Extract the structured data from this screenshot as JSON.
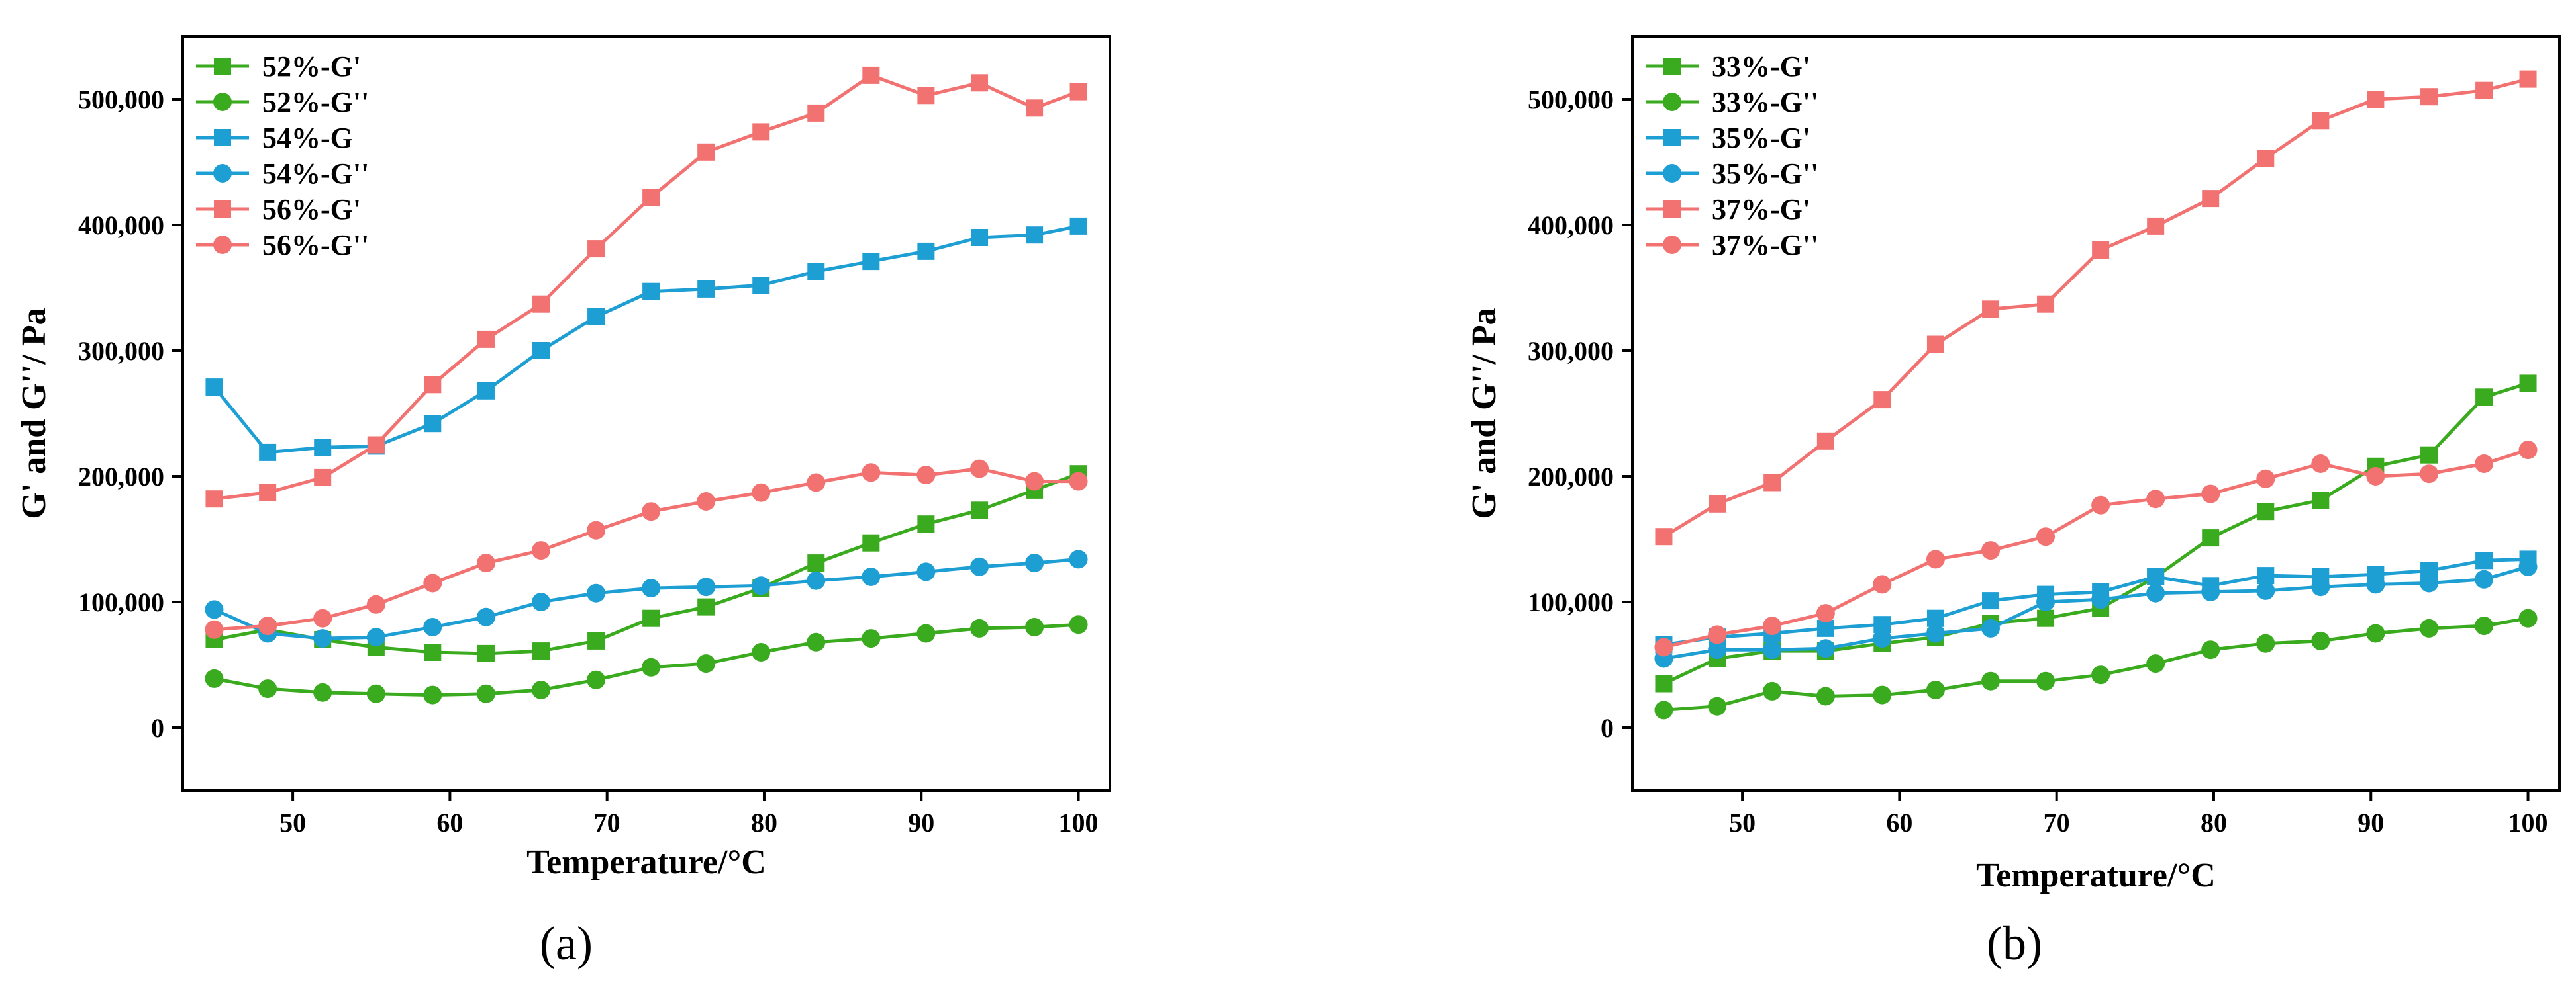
{
  "colors": {
    "green": "#3aaa1e",
    "blue": "#1e9fd4",
    "red": "#f27272",
    "axis": "#000000"
  },
  "chart_data": [
    {
      "type": "line",
      "panel_label": "(a)",
      "xlabel": "Temperature/°C",
      "ylabel": "G' and G''/ Pa",
      "xlim": [
        43,
        102
      ],
      "ylim": [
        -50000,
        550000
      ],
      "xticks": [
        50,
        60,
        70,
        80,
        90,
        100
      ],
      "yticks": [
        0,
        100000,
        200000,
        300000,
        400000,
        500000
      ],
      "ytick_labels": [
        "0",
        "100,000",
        "200,000",
        "300,000",
        "400,000",
        "500,000"
      ],
      "legend_position": "top-left",
      "x": [
        45,
        48.4,
        51.9,
        55.3,
        58.9,
        62.3,
        65.8,
        69.3,
        72.8,
        76.3,
        79.8,
        83.3,
        86.8,
        90.3,
        93.7,
        97.2,
        100
      ],
      "series": [
        {
          "name": "52%-G'",
          "marker": "square",
          "color": "green",
          "values": [
            70000,
            78000,
            70000,
            64000,
            60000,
            59000,
            61000,
            69000,
            87000,
            96000,
            111000,
            131000,
            147000,
            162000,
            173000,
            189000,
            202000
          ]
        },
        {
          "name": "52%-G''",
          "marker": "circle",
          "color": "green",
          "values": [
            39000,
            31000,
            28000,
            27000,
            26000,
            27000,
            30000,
            38000,
            48000,
            51000,
            60000,
            68000,
            71000,
            75000,
            79000,
            80000,
            82000
          ]
        },
        {
          "name": "54%-G",
          "marker": "square",
          "color": "blue",
          "values": [
            271000,
            219000,
            223000,
            224000,
            242000,
            268000,
            300000,
            327000,
            347000,
            349000,
            352000,
            363000,
            371000,
            379000,
            390000,
            392000,
            399000
          ]
        },
        {
          "name": "54%-G''",
          "marker": "circle",
          "color": "blue",
          "values": [
            94000,
            75000,
            71000,
            72000,
            80000,
            88000,
            100000,
            107000,
            111000,
            112000,
            113000,
            117000,
            120000,
            124000,
            128000,
            131000,
            134000
          ]
        },
        {
          "name": "56%-G'",
          "marker": "square",
          "color": "red",
          "values": [
            182000,
            187000,
            199000,
            225000,
            273000,
            309000,
            337000,
            381000,
            422000,
            458000,
            474000,
            489000,
            519000,
            503000,
            513000,
            493000,
            506000
          ]
        },
        {
          "name": "56%-G''",
          "marker": "circle",
          "color": "red",
          "values": [
            78000,
            81000,
            87000,
            98000,
            115000,
            131000,
            141000,
            157000,
            172000,
            180000,
            187000,
            195000,
            203000,
            201000,
            206000,
            196000,
            196000
          ]
        }
      ]
    },
    {
      "type": "line",
      "panel_label": "(b)",
      "xlabel": "Temperature/°C",
      "ylabel": "G' and G''/ Pa",
      "xlim": [
        43,
        102
      ],
      "ylim": [
        -50000,
        550000
      ],
      "xticks": [
        50,
        60,
        70,
        80,
        90,
        100
      ],
      "yticks": [
        0,
        100000,
        200000,
        300000,
        400000,
        500000
      ],
      "ytick_labels": [
        "0",
        "100,000",
        "200,000",
        "300,000",
        "400,000",
        "500,000"
      ],
      "legend_position": "top-left",
      "x": [
        45,
        48.4,
        51.9,
        55.3,
        58.9,
        62.3,
        65.8,
        69.3,
        72.8,
        76.3,
        79.8,
        83.3,
        86.8,
        90.3,
        93.7,
        97.2,
        100
      ],
      "series": [
        {
          "name": "33%-G'",
          "marker": "square",
          "color": "green",
          "values": [
            35000,
            55000,
            61000,
            61000,
            67000,
            72000,
            83000,
            87000,
            95000,
            120000,
            151000,
            172000,
            181000,
            208000,
            217000,
            263000,
            274000
          ]
        },
        {
          "name": "33%-G''",
          "marker": "circle",
          "color": "green",
          "values": [
            14000,
            17000,
            29000,
            25000,
            26000,
            30000,
            37000,
            37000,
            42000,
            51000,
            62000,
            67000,
            69000,
            75000,
            79000,
            81000,
            87000
          ]
        },
        {
          "name": "35%-G'",
          "marker": "square",
          "color": "blue",
          "values": [
            66000,
            72000,
            75000,
            79000,
            82000,
            87000,
            101000,
            106000,
            108000,
            120000,
            113000,
            121000,
            120000,
            122000,
            125000,
            133000,
            134000
          ]
        },
        {
          "name": "35%-G''",
          "marker": "circle",
          "color": "blue",
          "values": [
            55000,
            62000,
            62000,
            63000,
            71000,
            75000,
            79000,
            100000,
            102000,
            107000,
            108000,
            109000,
            112000,
            114000,
            115000,
            118000,
            128000
          ]
        },
        {
          "name": "37%-G'",
          "marker": "square",
          "color": "red",
          "values": [
            152000,
            178000,
            195000,
            228000,
            261000,
            305000,
            333000,
            337000,
            380000,
            399000,
            421000,
            453000,
            483000,
            500000,
            502000,
            507000,
            516000
          ]
        },
        {
          "name": "37%-G''",
          "marker": "circle",
          "color": "red",
          "values": [
            64000,
            74000,
            81000,
            91000,
            114000,
            134000,
            141000,
            152000,
            177000,
            182000,
            186000,
            198000,
            210000,
            200000,
            202000,
            210000,
            221000
          ]
        }
      ]
    }
  ]
}
